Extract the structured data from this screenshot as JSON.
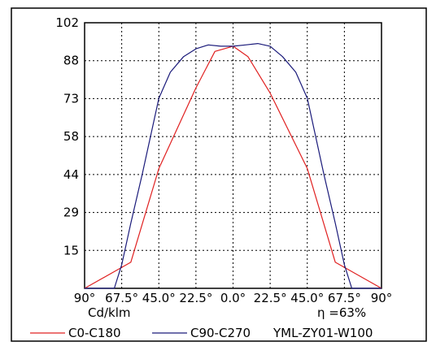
{
  "chart_data": {
    "type": "line",
    "yticks": [
      "102",
      "88",
      "73",
      "58",
      "44",
      "29",
      "15"
    ],
    "ylim": [
      0,
      102
    ],
    "xticks": [
      "90°",
      "67.5°",
      "45.0°",
      "22.5°",
      "0.0°",
      "22.5°",
      "45.0°",
      "67.5°",
      "90°"
    ],
    "xlim": [
      -90,
      90
    ],
    "unit_label": "Cd/klm",
    "efficiency_label": "η =63%",
    "grid": true,
    "legend_position": "bottom",
    "series": [
      {
        "name": "C0-C180",
        "color": "#e02020",
        "x": [
          -90,
          -62,
          -45,
          -22.5,
          -11,
          0,
          9,
          22.5,
          45,
          62,
          90
        ],
        "y": [
          0,
          10,
          46,
          77,
          91,
          93,
          89,
          75,
          46,
          10,
          0
        ]
      },
      {
        "name": "C90-C270",
        "color": "#1a1a7a",
        "x": [
          -90,
          -72,
          -67.5,
          -62,
          -55,
          -45,
          -38,
          -30,
          -22.5,
          -15,
          -7.5,
          0,
          7.5,
          15,
          22.5,
          30,
          38,
          45,
          55,
          62,
          67.5,
          72,
          90
        ],
        "y": [
          0,
          0,
          9,
          25,
          44,
          73,
          83,
          89,
          92,
          93.5,
          93,
          93,
          93.5,
          94,
          93,
          89,
          83,
          73,
          44,
          25,
          9,
          0,
          0
        ]
      }
    ],
    "extra_legend_text": "YML-ZY01-W100"
  }
}
